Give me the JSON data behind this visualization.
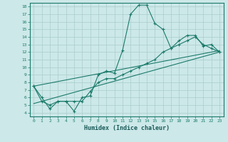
{
  "xlabel": "Humidex (Indice chaleur)",
  "bg_color": "#cce8e8",
  "grid_color": "#aacccc",
  "line_color": "#1a7a6a",
  "xlim": [
    -0.5,
    23.5
  ],
  "ylim": [
    3.5,
    18.5
  ],
  "xticks": [
    0,
    1,
    2,
    3,
    4,
    5,
    6,
    7,
    8,
    9,
    10,
    11,
    12,
    13,
    14,
    15,
    16,
    17,
    18,
    19,
    20,
    21,
    22,
    23
  ],
  "yticks": [
    4,
    5,
    6,
    7,
    8,
    9,
    10,
    11,
    12,
    13,
    14,
    15,
    16,
    17,
    18
  ],
  "series1_x": [
    0,
    1,
    2,
    3,
    4,
    5,
    6,
    7,
    8,
    9,
    10,
    11,
    12,
    13,
    14,
    15,
    16,
    17,
    18,
    19,
    20,
    21,
    22,
    23
  ],
  "series1_y": [
    7.5,
    6.0,
    4.5,
    5.5,
    5.5,
    4.2,
    6.0,
    6.2,
    9.0,
    9.5,
    9.2,
    12.2,
    17.0,
    18.2,
    18.2,
    15.8,
    15.0,
    12.5,
    13.5,
    14.2,
    14.2,
    12.8,
    13.0,
    12.0
  ],
  "series2_x": [
    0,
    1,
    2,
    3,
    4,
    5,
    6,
    7,
    8,
    9,
    10,
    11,
    12,
    13,
    14,
    15,
    16,
    17,
    18,
    19,
    20,
    21,
    22,
    23
  ],
  "series2_y": [
    7.5,
    5.5,
    5.0,
    5.5,
    5.5,
    5.5,
    5.5,
    6.8,
    8.0,
    8.5,
    8.5,
    9.0,
    9.5,
    10.0,
    10.5,
    11.0,
    12.0,
    12.5,
    13.0,
    13.5,
    14.0,
    13.0,
    12.5,
    12.0
  ],
  "series3_x": [
    0,
    23
  ],
  "series3_y": [
    7.5,
    12.2
  ],
  "series4_x": [
    0,
    23
  ],
  "series4_y": [
    5.2,
    12.0
  ]
}
